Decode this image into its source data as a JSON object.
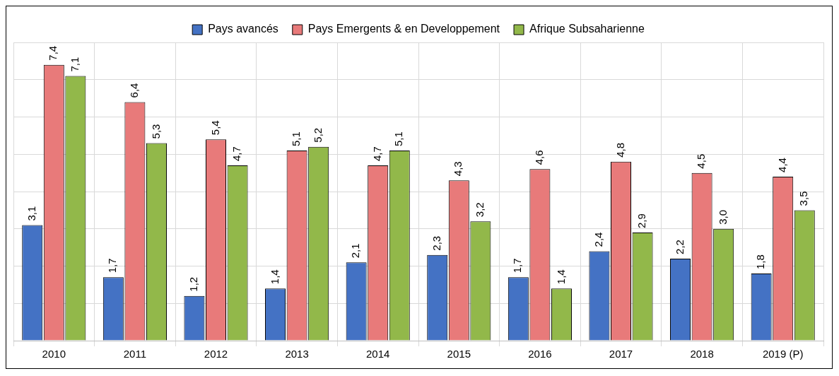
{
  "chart_data": {
    "type": "bar",
    "categories": [
      "2010",
      "2011",
      "2012",
      "2013",
      "2014",
      "2015",
      "2016",
      "2017",
      "2018",
      "2019 (P)"
    ],
    "series": [
      {
        "name": "Pays avancés",
        "color": "#4472c4",
        "values": [
          3.1,
          1.7,
          1.2,
          1.4,
          2.1,
          2.3,
          1.7,
          2.4,
          2.2,
          1.8
        ],
        "value_labels": [
          "3,1",
          "1,7",
          "1,2",
          "1,4",
          "2,1",
          "2,3",
          "1,7",
          "2,4",
          "2,2",
          "1,8"
        ]
      },
      {
        "name": "Pays Emergents & en Developpement",
        "color": "#e87a7a",
        "values": [
          7.4,
          6.4,
          5.4,
          5.1,
          4.7,
          4.3,
          4.6,
          4.8,
          4.5,
          4.4
        ],
        "value_labels": [
          "7,4",
          "6,4",
          "5,4",
          "5,1",
          "4,7",
          "4,3",
          "4,6",
          "4,8",
          "4,5",
          "4,4"
        ]
      },
      {
        "name": "Afrique Subsaharienne",
        "color": "#92b84a",
        "values": [
          7.1,
          5.3,
          4.7,
          5.2,
          5.1,
          3.2,
          1.4,
          2.9,
          3.0,
          3.5
        ],
        "value_labels": [
          "7,1",
          "5,3",
          "4,7",
          "5,2",
          "5,1",
          "3,2",
          "1,4",
          "2,9",
          "3,0",
          "3,5"
        ]
      }
    ],
    "tick_labels": "x",
    "grid": true,
    "legend": "top"
  }
}
